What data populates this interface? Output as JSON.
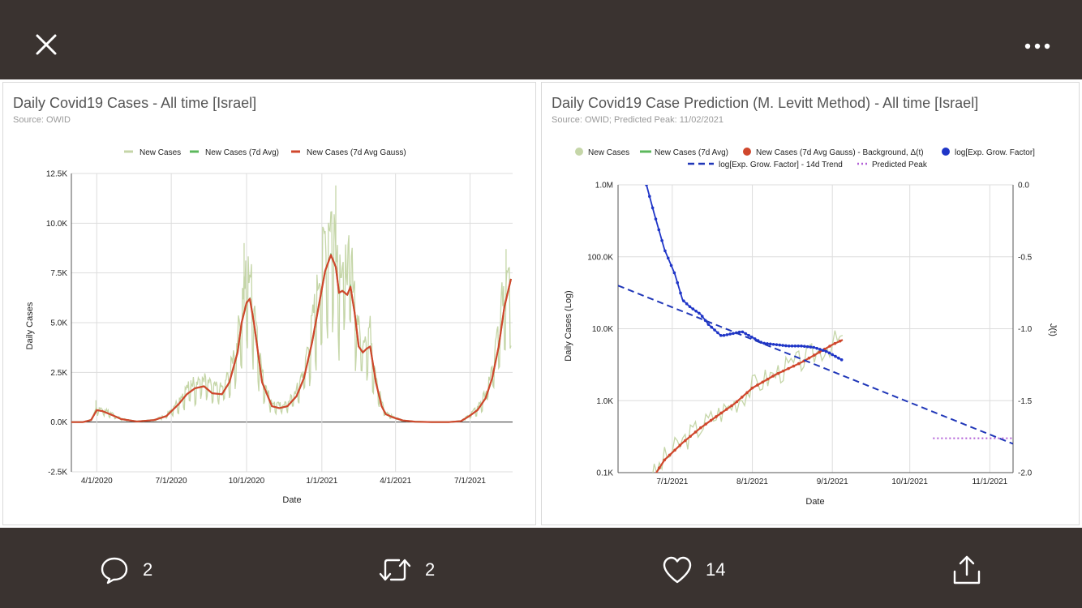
{
  "colors": {
    "bar_bg": "#3a3330",
    "new_cases": "#c5d6a8",
    "avg7": "#5cb85c",
    "gauss": "#d0472d",
    "growth": "#1f35c7",
    "trend": "#2037b8",
    "peak": "#b25fd6",
    "grid": "#dddddd"
  },
  "topbar": {
    "close_icon": "close-icon",
    "more_icon": "more-icon"
  },
  "left_chart": {
    "title": "Daily Covid19 Cases - All time [Israel]",
    "subtitle": "Source: OWID",
    "legend": [
      "New Cases",
      "New Cases (7d Avg)",
      "New Cases (7d Avg Gauss)"
    ],
    "chart_data": {
      "type": "line",
      "title": "Daily Covid19 Cases - All time [Israel]",
      "subtitle": "Source: OWID",
      "xlabel": "Date",
      "ylabel": "Daily Cases",
      "x_ticks": [
        "4/1/2020",
        "7/1/2020",
        "10/1/2020",
        "1/1/2021",
        "4/1/2021",
        "7/1/2021"
      ],
      "y_ticks": [
        "12.5K",
        "10.0K",
        "7.5K",
        "5.0K",
        "2.5K",
        "0.0K",
        "-2.5K"
      ],
      "ylim": [
        -2500,
        12500
      ],
      "grid": true,
      "legend_position": "top",
      "series": [
        {
          "name": "New Cases (7d Avg Gauss)",
          "x": [
            "2020-03-01",
            "2020-03-15",
            "2020-03-25",
            "2020-04-01",
            "2020-04-08",
            "2020-04-20",
            "2020-05-01",
            "2020-05-20",
            "2020-06-10",
            "2020-06-25",
            "2020-07-10",
            "2020-07-20",
            "2020-07-30",
            "2020-08-10",
            "2020-08-20",
            "2020-09-01",
            "2020-09-10",
            "2020-09-20",
            "2020-09-25",
            "2020-10-01",
            "2020-10-05",
            "2020-10-10",
            "2020-10-20",
            "2020-11-01",
            "2020-11-10",
            "2020-11-20",
            "2020-12-01",
            "2020-12-10",
            "2020-12-20",
            "2020-12-28",
            "2021-01-05",
            "2021-01-12",
            "2021-01-18",
            "2021-01-22",
            "2021-01-26",
            "2021-02-01",
            "2021-02-05",
            "2021-02-10",
            "2021-02-15",
            "2021-02-20",
            "2021-02-25",
            "2021-03-01",
            "2021-03-08",
            "2021-03-15",
            "2021-03-20",
            "2021-03-28",
            "2021-04-10",
            "2021-04-25",
            "2021-05-15",
            "2021-06-05",
            "2021-06-20",
            "2021-06-30",
            "2021-07-10",
            "2021-07-20",
            "2021-07-28",
            "2021-08-05",
            "2021-08-12",
            "2021-08-20"
          ],
          "values": [
            0,
            0,
            100,
            600,
            550,
            350,
            150,
            30,
            100,
            300,
            900,
            1400,
            1700,
            1800,
            1450,
            1400,
            2000,
            3500,
            5000,
            6000,
            6200,
            5000,
            2000,
            800,
            700,
            800,
            1300,
            2200,
            4000,
            5800,
            7600,
            8400,
            7800,
            6500,
            6600,
            6400,
            6800,
            5500,
            3800,
            3500,
            3700,
            3800,
            2000,
            800,
            400,
            250,
            80,
            20,
            0,
            0,
            50,
            300,
            600,
            1200,
            2200,
            3800,
            5800,
            7200
          ]
        },
        {
          "name": "New Cases (7d Avg)",
          "note_visible": "overlaps gauss line",
          "x": [],
          "values": []
        },
        {
          "name": "New Cases",
          "peak_values_visible": [
            1100,
            2100,
            9000,
            11900,
            8700
          ],
          "x": [
            "2020-03-31",
            "2020-07-25",
            "2020-09-28",
            "2021-01-18",
            "2021-08-14"
          ],
          "values": [
            1100,
            2100,
            9000,
            11900,
            8700
          ]
        }
      ]
    }
  },
  "right_chart": {
    "title": "Daily Covid19 Case Prediction (M. Levitt Method) - All time [Israel]",
    "subtitle": "Source: OWID; Predicted Peak: 11/02/2021",
    "legend_row1": [
      "New Cases",
      "New Cases (7d Avg)",
      "New Cases (7d Avg Gauss) - Background, Δ(t)",
      "log[Exp. Grow. Factor]"
    ],
    "legend_row2": [
      "log[Exp. Grow. Factor] - 14d Trend",
      "Predicted Peak"
    ],
    "chart_data": {
      "type": "line",
      "title": "Daily Covid19 Case Prediction (M. Levitt Method) - All time [Israel]",
      "subtitle": "Source: OWID; Predicted Peak: 11/02/2021",
      "xlabel": "Date",
      "ylabel": "Daily Cases (Log)",
      "y2label": "J(t)",
      "x_ticks": [
        "7/1/2021",
        "8/1/2021",
        "9/1/2021",
        "10/1/2021",
        "11/1/2021"
      ],
      "y_ticks": [
        "1.0M",
        "100.0K",
        "10.0K",
        "1.0K",
        "0.1K"
      ],
      "y2_ticks": [
        "0.0",
        "-0.5",
        "-1.0",
        "-1.5",
        "-2.0"
      ],
      "y_scale": "log",
      "ylim": [
        100,
        1000000
      ],
      "y2lim": [
        -2.0,
        0.0
      ],
      "grid": true,
      "legend_position": "top",
      "series": [
        {
          "name": "New Cases (7d Avg Gauss) - Background, Δ(t)",
          "axis": "left",
          "x": [
            "2021-06-24",
            "2021-06-28",
            "2021-07-05",
            "2021-07-12",
            "2021-07-18",
            "2021-07-25",
            "2021-08-01",
            "2021-08-10",
            "2021-08-20",
            "2021-08-26",
            "2021-09-01",
            "2021-09-05"
          ],
          "values": [
            90,
            150,
            260,
            420,
            600,
            900,
            1500,
            2300,
            3400,
            4500,
            6000,
            7000
          ]
        },
        {
          "name": "log[Exp. Grow. Factor]",
          "axis": "right",
          "x": [
            "2021-06-21",
            "2021-06-24",
            "2021-06-28",
            "2021-07-02",
            "2021-07-05",
            "2021-07-08",
            "2021-07-12",
            "2021-07-15",
            "2021-07-20",
            "2021-07-28",
            "2021-08-05",
            "2021-08-15",
            "2021-08-20",
            "2021-08-25",
            "2021-08-30",
            "2021-09-05"
          ],
          "values": [
            0.0,
            -0.2,
            -0.45,
            -0.62,
            -0.8,
            -0.85,
            -0.9,
            -0.97,
            -1.05,
            -1.02,
            -1.1,
            -1.12,
            -1.12,
            -1.13,
            -1.16,
            -1.22
          ]
        },
        {
          "name": "log[Exp. Grow. Factor] - 14d Trend",
          "axis": "right",
          "x": [
            "2021-06-10",
            "2021-11-10"
          ],
          "values": [
            -0.7,
            -1.8
          ]
        },
        {
          "name": "Predicted Peak",
          "axis": "left",
          "x": [
            "2021-10-10",
            "2021-11-10"
          ],
          "values": [
            300,
            300
          ]
        },
        {
          "name": "New Cases",
          "axis": "left",
          "x": [],
          "values": []
        },
        {
          "name": "New Cases (7d Avg)",
          "axis": "left",
          "x": [],
          "values": []
        }
      ]
    }
  },
  "bottombar": {
    "reply_count": "2",
    "retweet_count": "2",
    "like_count": "14",
    "reply_icon": "reply-icon",
    "retweet_icon": "retweet-icon",
    "like_icon": "heart-icon",
    "share_icon": "share-icon"
  }
}
